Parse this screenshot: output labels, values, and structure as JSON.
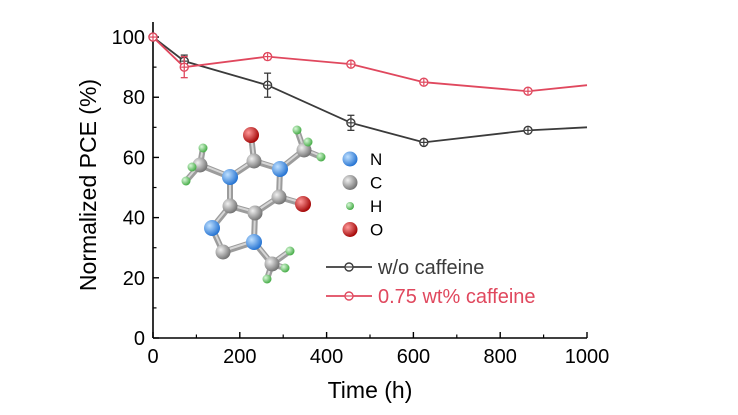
{
  "chart_data": {
    "type": "line",
    "title": "",
    "xlabel": "Time (h)",
    "ylabel": "Normalized PCE (%)",
    "xlim": [
      0,
      1000
    ],
    "ylim": [
      0,
      105
    ],
    "xticks": [
      0,
      200,
      400,
      600,
      800,
      1000
    ],
    "yticks": [
      0,
      20,
      40,
      60,
      80,
      100
    ],
    "grid": false,
    "legend_position": "lower-right",
    "series": [
      {
        "name": "w/o caffeine",
        "color": "#3b3b3b",
        "x": [
          0,
          72,
          264,
          456,
          624,
          864,
          1000
        ],
        "y": [
          100,
          92,
          84,
          71.5,
          65,
          69,
          70
        ],
        "err": [
          0,
          2,
          4,
          2.5,
          0,
          0,
          null
        ]
      },
      {
        "name": "0.75 wt% caffeine",
        "color": "#e0485e",
        "x": [
          0,
          72,
          264,
          456,
          624,
          864,
          1000
        ],
        "y": [
          100,
          90,
          93.5,
          91,
          85,
          82,
          84
        ],
        "err": [
          0,
          3.5,
          1,
          0,
          0,
          0,
          null
        ]
      }
    ]
  },
  "inset": {
    "legend": [
      {
        "label": "N",
        "color": "#3d8fe6"
      },
      {
        "label": "C",
        "color": "#9a9a9a"
      },
      {
        "label": "H",
        "color": "#69c96a"
      },
      {
        "label": "O",
        "color": "#cc1111"
      }
    ]
  }
}
